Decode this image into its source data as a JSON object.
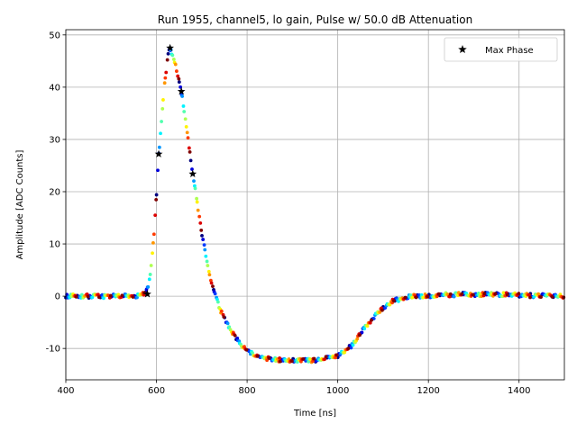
{
  "chart_data": {
    "type": "scatter",
    "title": "Run 1955, channel5, lo gain, Pulse w/ 50.0 dB Attenuation",
    "xlabel": "Time [ns]",
    "ylabel": "Amplitude [ADC Counts]",
    "xlim": [
      400,
      1500
    ],
    "ylim": [
      -16,
      51
    ],
    "xticks": [
      400,
      600,
      800,
      1000,
      1200,
      1400
    ],
    "yticks": [
      -10,
      0,
      10,
      20,
      30,
      40,
      50
    ],
    "grid": true,
    "legend": {
      "placement": "top-right",
      "entries": [
        "Max Phase"
      ]
    },
    "colormap": [
      "#00007f",
      "#0000ff",
      "#007fff",
      "#00ffff",
      "#7fff7f",
      "#ffff00",
      "#ff7f00",
      "#ff0000",
      "#7f0000"
    ],
    "pulse_curve": [
      [
        400,
        0
      ],
      [
        560,
        0
      ],
      [
        575,
        0.5
      ],
      [
        585,
        3
      ],
      [
        595,
        12
      ],
      [
        605,
        27
      ],
      [
        615,
        38
      ],
      [
        625,
        46
      ],
      [
        630,
        47.5
      ],
      [
        640,
        45
      ],
      [
        655,
        39
      ],
      [
        670,
        30
      ],
      [
        680,
        23.5
      ],
      [
        700,
        12
      ],
      [
        720,
        3
      ],
      [
        740,
        -2.5
      ],
      [
        760,
        -6
      ],
      [
        780,
        -8.5
      ],
      [
        800,
        -10.5
      ],
      [
        830,
        -11.8
      ],
      [
        870,
        -12.2
      ],
      [
        950,
        -12.3
      ],
      [
        1000,
        -11.5
      ],
      [
        1030,
        -9.5
      ],
      [
        1060,
        -6
      ],
      [
        1090,
        -3
      ],
      [
        1120,
        -1
      ],
      [
        1160,
        0
      ],
      [
        1250,
        0.3
      ],
      [
        1350,
        0.3
      ],
      [
        1500,
        0
      ]
    ],
    "sample_period": 25,
    "phase_count": 12,
    "max_phase": {
      "name": "Max Phase",
      "x": [
        580,
        605,
        630,
        655,
        680
      ],
      "y": [
        0.4,
        27.2,
        47.5,
        39.2,
        23.4
      ]
    }
  }
}
